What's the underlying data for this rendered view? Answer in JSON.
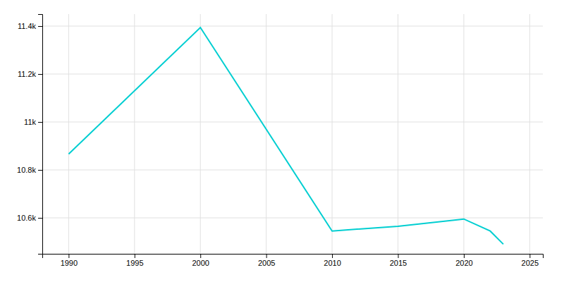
{
  "chart_data": {
    "type": "line",
    "x": [
      1990,
      2000,
      2010,
      2015,
      2020,
      2022,
      2023
    ],
    "values": [
      10866,
      11394,
      10545,
      10565,
      10595,
      10545,
      10490
    ],
    "color": "#00CED1",
    "xlim": [
      1988,
      2026
    ],
    "xticks": [
      1990,
      1995,
      2000,
      2005,
      2010,
      2015,
      2020,
      2025
    ],
    "ylim": [
      10450,
      11450
    ],
    "yticks": [
      {
        "value": 10600,
        "label": "10.6k"
      },
      {
        "value": 10800,
        "label": "10.8k"
      },
      {
        "value": 11000,
        "label": "11k"
      },
      {
        "value": 11200,
        "label": "11.2k"
      },
      {
        "value": 11400,
        "label": "11.4k"
      }
    ],
    "grid": true
  }
}
